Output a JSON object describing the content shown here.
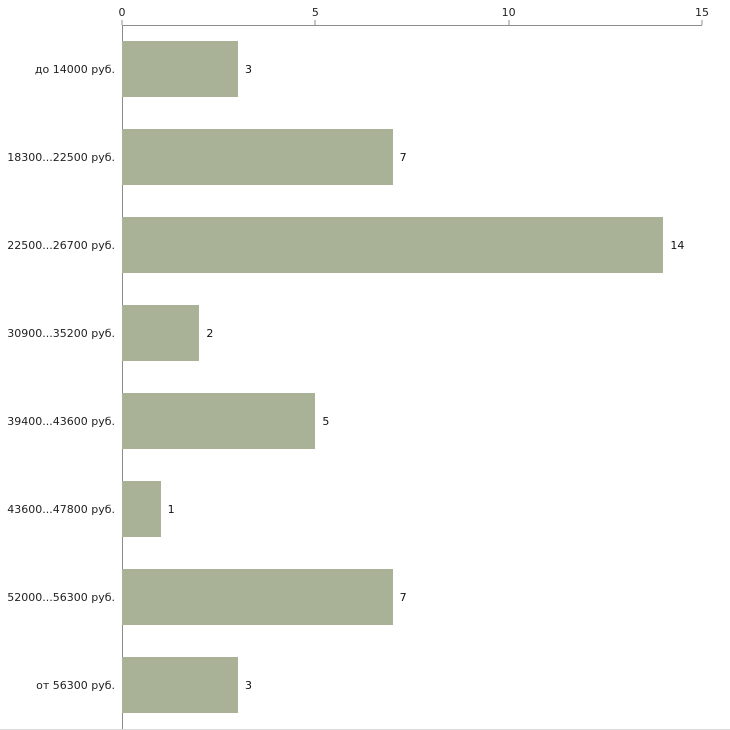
{
  "chart_data": {
    "type": "bar",
    "orientation": "horizontal",
    "title": "",
    "xlabel": "",
    "ylabel": "",
    "categories": [
      "до 14000 руб.",
      "18300...22500 руб.",
      "22500...26700 руб.",
      "30900...35200 руб.",
      "39400...43600 руб.",
      "43600...47800 руб.",
      "52000...56300 руб.",
      "от 56300 руб."
    ],
    "values": [
      3,
      7,
      14,
      2,
      5,
      1,
      7,
      3
    ],
    "xlim": [
      0,
      15
    ],
    "x_ticks": [
      0,
      5,
      10,
      15
    ],
    "grid": false,
    "legend_position": "none",
    "colors": {
      "bar": "#a9b196",
      "axis": "#8c8c8c",
      "text": "#222222",
      "background": "#ffffff"
    }
  }
}
